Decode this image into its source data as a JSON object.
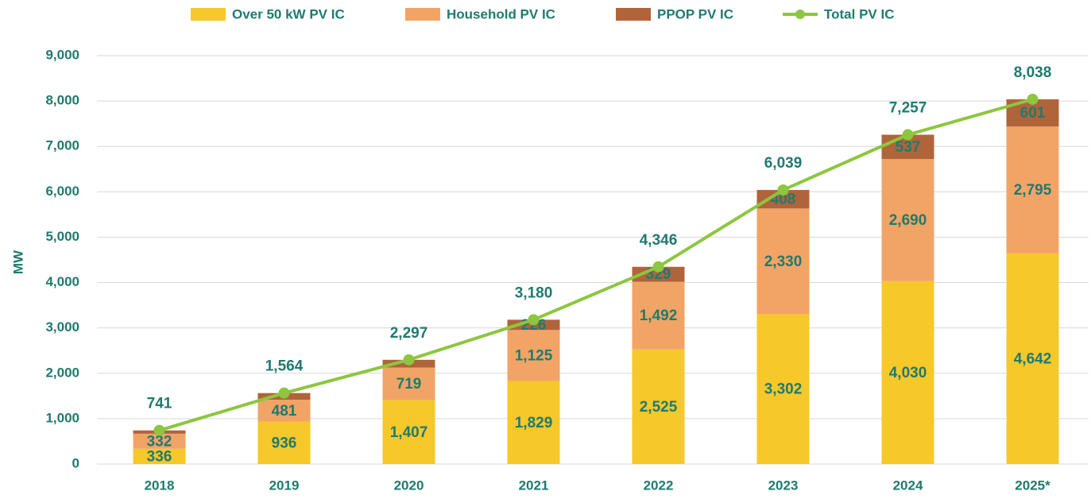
{
  "chart_data": {
    "type": "bar",
    "stacked": true,
    "y_label": "MW",
    "categories": [
      "2018",
      "2019",
      "2020",
      "2021",
      "2022",
      "2023",
      "2024",
      "2025*"
    ],
    "series": [
      {
        "name": "Over 50 kW PV IC",
        "color": "#f7c82a",
        "values": [
          336,
          936,
          1407,
          1829,
          2525,
          3302,
          4030,
          4642
        ],
        "value_labels": [
          "336",
          "936",
          "1,407",
          "1,829",
          "2,525",
          "3,302",
          "4,030",
          "4,642"
        ]
      },
      {
        "name": "Household PV IC",
        "color": "#f2a466",
        "values": [
          332,
          481,
          719,
          1125,
          1492,
          2330,
          2690,
          2795
        ],
        "value_labels": [
          "332",
          "481",
          "719",
          "1,125",
          "1,492",
          "2,330",
          "2,690",
          "2,795"
        ]
      },
      {
        "name": "PPOP PV IC",
        "color": "#b0643a",
        "values": [
          73,
          147,
          171,
          226,
          329,
          408,
          537,
          601
        ],
        "value_labels": [
          null,
          null,
          null,
          "226",
          "329",
          "408",
          "537",
          "601"
        ]
      },
      {
        "name": "Total PV IC",
        "type": "line",
        "color": "#8dc63f",
        "values": [
          741,
          1564,
          2297,
          3180,
          4346,
          6039,
          7257,
          8038
        ],
        "value_labels": [
          "741",
          "1,564",
          "2,297",
          "3,180",
          "4,346",
          "6,039",
          "7,257",
          "8,038"
        ]
      }
    ],
    "ylim": [
      0,
      9000
    ],
    "yticks": [
      0,
      {
        "value": 1000,
        "label": "1,000"
      },
      {
        "value": 2000,
        "label": "2,000"
      },
      {
        "value": 3000,
        "label": "3,000"
      },
      {
        "value": 4000,
        "label": "4,000"
      },
      {
        "value": 5000,
        "label": "5,000"
      },
      {
        "value": 6000,
        "label": "6,000"
      },
      {
        "value": 7000,
        "label": "7,000"
      },
      {
        "value": 8000,
        "label": "8,000"
      },
      {
        "value": 9000,
        "label": "9,000"
      }
    ],
    "grid": true
  }
}
